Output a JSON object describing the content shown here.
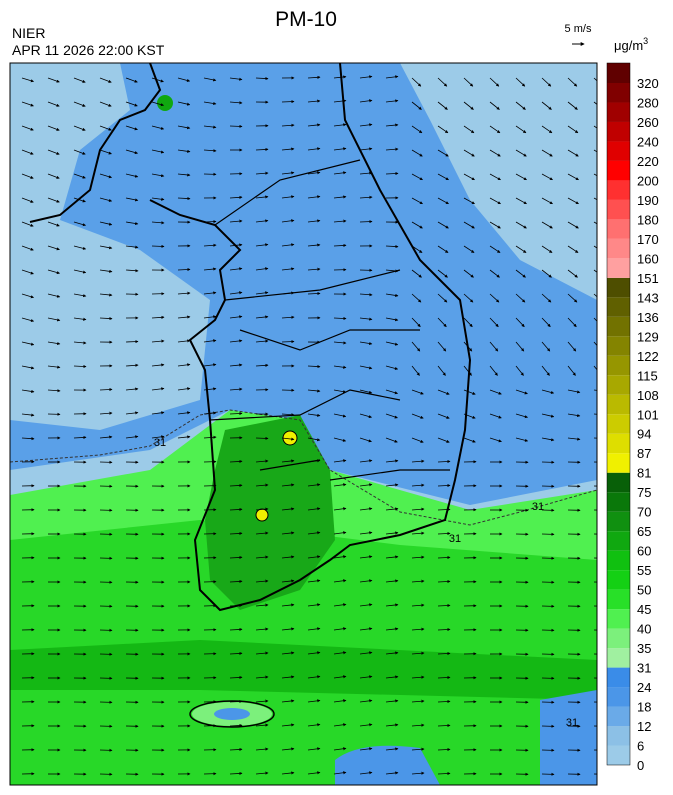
{
  "header": {
    "title": "PM-10",
    "source": "NIER",
    "datetime": "APR 11 2026 22:00 KST",
    "wind_scale": "5 m/s"
  },
  "colorbar": {
    "unit": "μg/m",
    "unit_exponent": "3",
    "ticks": [
      0,
      6,
      12,
      18,
      24,
      31,
      35,
      40,
      45,
      50,
      55,
      60,
      65,
      70,
      75,
      81,
      87,
      94,
      101,
      108,
      115,
      122,
      129,
      136,
      143,
      151,
      160,
      170,
      180,
      190,
      200,
      220,
      240,
      260,
      280,
      320
    ],
    "colors": [
      "#9ccbe8",
      "#8cc0e6",
      "#6aaae8",
      "#4b96e8",
      "#3a8ce8",
      "#a0f0a0",
      "#7cf07c",
      "#50f050",
      "#28e028",
      "#14d014",
      "#10c010",
      "#10a810",
      "#109010",
      "#0a780a",
      "#086008",
      "#f0f000",
      "#dede00",
      "#cccc00",
      "#baba00",
      "#a8a800",
      "#969600",
      "#848400",
      "#727200",
      "#606000",
      "#4e4e00",
      "#ffa0a0",
      "#ff8888",
      "#ff7070",
      "#ff5050",
      "#ff3030",
      "#ff0000",
      "#e00000",
      "#c00000",
      "#a00000",
      "#800000",
      "#600000"
    ]
  },
  "map": {
    "contour_labels": [
      31,
      31,
      31,
      31
    ]
  }
}
